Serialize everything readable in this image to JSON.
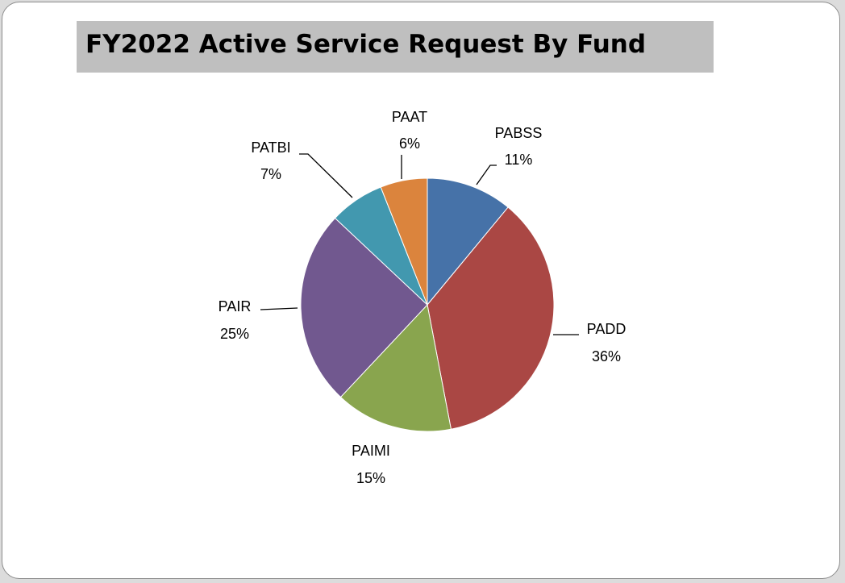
{
  "chart_data": {
    "type": "pie",
    "title": "FY2022 Active Service Request By Fund",
    "slices": [
      {
        "label": "PABSS",
        "percent_label": "11%",
        "value": 11,
        "color": "#4672a8"
      },
      {
        "label": "PADD",
        "percent_label": "36%",
        "value": 36,
        "color": "#aa4744"
      },
      {
        "label": "PAIMI",
        "percent_label": "15%",
        "value": 15,
        "color": "#89a54e"
      },
      {
        "label": "PAIR",
        "percent_label": "25%",
        "value": 25,
        "color": "#71588f"
      },
      {
        "label": "PATBI",
        "percent_label": "7%",
        "value": 7,
        "color": "#4298af"
      },
      {
        "label": "PAAT",
        "percent_label": "6%",
        "value": 6,
        "color": "#db843d"
      }
    ],
    "legend": "none",
    "data_labels": "outside-with-leaders"
  }
}
